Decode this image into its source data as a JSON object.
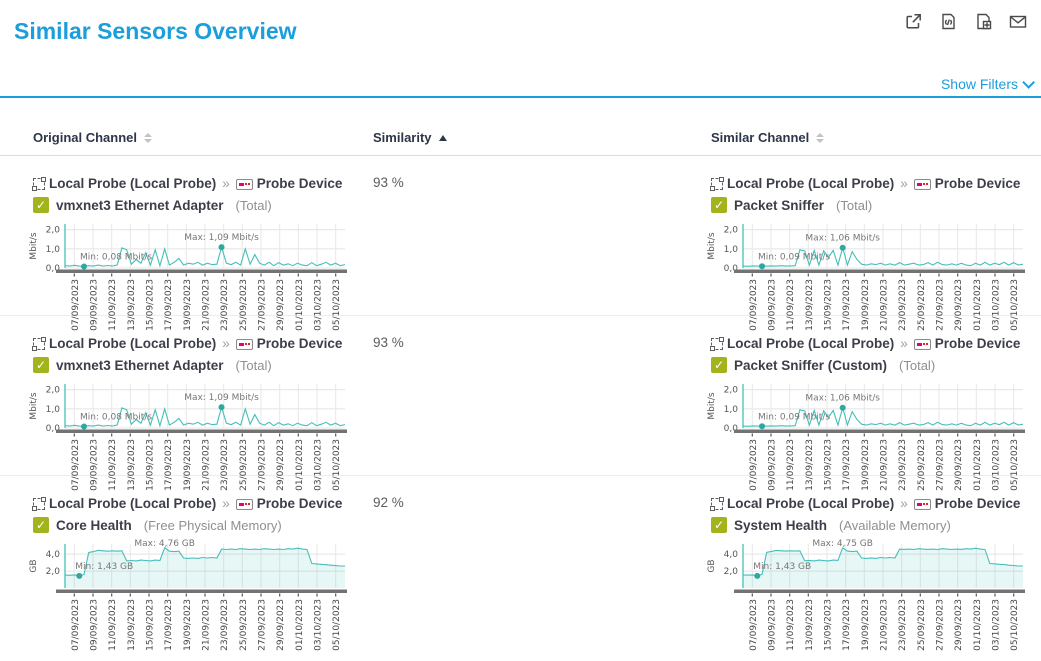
{
  "colors": {
    "accent": "#1b9edc",
    "series": "#45bfb9",
    "check": "#a3b31c"
  },
  "header": {
    "title": "Similar Sensors Overview",
    "show_filters_label": "Show Filters",
    "toolbar_icons": [
      "open-in-new-window",
      "view-page-source",
      "add-report",
      "send-by-email"
    ]
  },
  "table": {
    "breadcrumb_separator": "»",
    "columns": {
      "original": {
        "label": "Original Channel",
        "sort": "none"
      },
      "similarity": {
        "label": "Similarity",
        "sort": "asc"
      },
      "similar": {
        "label": "Similar Channel",
        "sort": "none"
      }
    },
    "rows": [
      {
        "similarity": "93 %",
        "original": {
          "probe": "Local Probe (Local Probe)",
          "device": "Probe Device",
          "sensor": "vmxnet3 Ethernet Adapter",
          "channel": "(Total)",
          "chart_key": "vmxnet3_total"
        },
        "similar": {
          "probe": "Local Probe (Local Probe)",
          "device": "Probe Device",
          "sensor": "Packet Sniffer",
          "channel": "(Total)",
          "chart_key": "packet_sniffer_total"
        }
      },
      {
        "similarity": "93 %",
        "original": {
          "probe": "Local Probe (Local Probe)",
          "device": "Probe Device",
          "sensor": "vmxnet3 Ethernet Adapter",
          "channel": "(Total)",
          "chart_key": "vmxnet3_total"
        },
        "similar": {
          "probe": "Local Probe (Local Probe)",
          "device": "Probe Device",
          "sensor": "Packet Sniffer (Custom)",
          "channel": "(Total)",
          "chart_key": "packet_sniffer_total"
        }
      },
      {
        "similarity": "92 %",
        "original": {
          "probe": "Local Probe (Local Probe)",
          "device": "Probe Device",
          "sensor": "Core Health",
          "channel": "(Free Physical Memory)",
          "chart_key": "core_health_mem"
        },
        "similar": {
          "probe": "Local Probe (Local Probe)",
          "device": "Probe Device",
          "sensor": "System Health",
          "channel": "(Available Memory)",
          "chart_key": "system_health_mem"
        }
      }
    ]
  },
  "chart_data": {
    "vmxnet3_total": {
      "type": "line",
      "unit": "Mbit/s",
      "ylim": [
        0,
        2.3
      ],
      "yticks": [
        {
          "v": 0,
          "label": "0,0"
        },
        {
          "v": 1,
          "label": "1,0"
        },
        {
          "v": 2,
          "label": "2,0"
        }
      ],
      "x_labels": [
        "07/09/2023",
        "09/09/2023",
        "11/09/2023",
        "13/09/2023",
        "15/09/2023",
        "17/09/2023",
        "19/09/2023",
        "21/09/2023",
        "23/09/2023",
        "25/09/2023",
        "27/09/2023",
        "29/09/2023",
        "01/10/2023",
        "03/10/2023",
        "05/10/2023"
      ],
      "max": {
        "label": "Max: 1,09 Mbit/s",
        "frac": 0.559,
        "value": 1.09,
        "dot": true
      },
      "min": {
        "label": "Min: 0,08 Mbit/s",
        "frac": 0.068,
        "value": 0.08
      },
      "values": [
        0.12,
        0.1,
        0.14,
        0.1,
        0.08,
        0.12,
        0.1,
        0.15,
        0.1,
        0.13,
        0.1,
        0.16,
        1.05,
        0.95,
        0.2,
        0.45,
        0.25,
        0.8,
        0.15,
        0.95,
        0.12,
        1.0,
        0.15,
        0.3,
        0.5,
        0.15,
        0.25,
        0.2,
        0.3,
        0.15,
        0.25,
        0.18,
        0.2,
        1.09,
        0.25,
        0.18,
        0.3,
        0.15,
        1.0,
        0.2,
        0.7,
        0.25,
        0.15,
        0.3,
        0.12,
        0.28,
        0.15,
        0.22,
        0.12,
        0.25,
        0.15,
        0.12,
        0.28,
        0.12,
        0.2,
        0.3,
        0.15,
        0.25,
        0.12,
        0.18
      ]
    },
    "packet_sniffer_total": {
      "type": "line",
      "unit": "Mbit/s",
      "ylim": [
        0,
        2.3
      ],
      "yticks": [
        {
          "v": 0,
          "label": "0,0"
        },
        {
          "v": 1,
          "label": "1,0"
        },
        {
          "v": 2,
          "label": "2,0"
        }
      ],
      "x_labels": [
        "07/09/2023",
        "09/09/2023",
        "11/09/2023",
        "13/09/2023",
        "15/09/2023",
        "17/09/2023",
        "19/09/2023",
        "21/09/2023",
        "23/09/2023",
        "25/09/2023",
        "27/09/2023",
        "29/09/2023",
        "01/10/2023",
        "03/10/2023",
        "05/10/2023"
      ],
      "max": {
        "label": "Max: 1,06 Mbit/s",
        "frac": 0.356,
        "value": 1.06,
        "dot": true
      },
      "min": {
        "label": "Min: 0,09 Mbit/s",
        "frac": 0.068,
        "value": 0.09
      },
      "values": [
        0.1,
        0.09,
        0.11,
        0.1,
        0.09,
        0.1,
        0.11,
        0.1,
        0.12,
        0.1,
        0.11,
        0.12,
        0.95,
        0.9,
        0.15,
        0.92,
        0.15,
        0.9,
        0.55,
        0.92,
        0.15,
        1.06,
        0.15,
        0.85,
        0.45,
        0.2,
        0.15,
        0.22,
        0.18,
        0.25,
        0.15,
        0.22,
        0.15,
        0.28,
        0.15,
        0.2,
        0.25,
        0.15,
        0.18,
        0.28,
        0.15,
        0.3,
        0.18,
        0.15,
        0.22,
        0.15,
        0.25,
        0.15,
        0.12,
        0.25,
        0.15,
        0.3,
        0.15,
        0.25,
        0.18,
        0.3,
        0.15,
        0.28,
        0.15,
        0.2
      ]
    },
    "core_health_mem": {
      "type": "area",
      "unit": "GB",
      "ylim": [
        0,
        5.2
      ],
      "yticks": [
        {
          "v": 2,
          "label": "2,0"
        },
        {
          "v": 4,
          "label": "4,0"
        }
      ],
      "x_labels": [
        "07/09/2023",
        "09/09/2023",
        "11/09/2023",
        "13/09/2023",
        "15/09/2023",
        "17/09/2023",
        "19/09/2023",
        "21/09/2023",
        "23/09/2023",
        "25/09/2023",
        "27/09/2023",
        "29/09/2023",
        "01/10/2023",
        "03/10/2023",
        "05/10/2023"
      ],
      "max": {
        "label": "Max: 4,76 GB",
        "frac": 0.356,
        "value": 4.76,
        "dot": false
      },
      "min": {
        "label": "Min: 1,43 GB",
        "frac": 0.051,
        "value": 1.43
      },
      "values": [
        1.55,
        1.5,
        1.55,
        1.43,
        1.6,
        4.2,
        4.3,
        4.45,
        4.4,
        4.35,
        4.4,
        4.35,
        4.4,
        3.2,
        3.25,
        3.2,
        3.3,
        3.25,
        3.2,
        3.3,
        3.25,
        4.76,
        4.35,
        4.3,
        4.35,
        3.55,
        3.5,
        3.55,
        3.5,
        3.6,
        3.55,
        3.6,
        3.55,
        4.6,
        4.55,
        4.6,
        4.55,
        4.65,
        4.6,
        4.55,
        4.6,
        4.55,
        4.65,
        4.6,
        4.55,
        4.6,
        4.55,
        4.65,
        4.6,
        4.7,
        4.6,
        4.55,
        2.9,
        2.85,
        2.8,
        2.75,
        2.7,
        2.65,
        2.6,
        2.6
      ]
    },
    "system_health_mem": {
      "type": "area",
      "unit": "GB",
      "ylim": [
        0,
        5.2
      ],
      "yticks": [
        {
          "v": 2,
          "label": "2,0"
        },
        {
          "v": 4,
          "label": "4,0"
        }
      ],
      "x_labels": [
        "07/09/2023",
        "09/09/2023",
        "11/09/2023",
        "13/09/2023",
        "15/09/2023",
        "17/09/2023",
        "19/09/2023",
        "21/09/2023",
        "23/09/2023",
        "25/09/2023",
        "27/09/2023",
        "29/09/2023",
        "01/10/2023",
        "03/10/2023",
        "05/10/2023"
      ],
      "max": {
        "label": "Max: 4,75 GB",
        "frac": 0.356,
        "value": 4.75,
        "dot": false
      },
      "min": {
        "label": "Min: 1,43 GB",
        "frac": 0.051,
        "value": 1.43
      },
      "values": [
        1.55,
        1.52,
        1.55,
        1.43,
        1.62,
        4.22,
        4.32,
        4.44,
        4.4,
        4.36,
        4.4,
        4.36,
        4.4,
        3.22,
        3.26,
        3.2,
        3.3,
        3.24,
        3.2,
        3.3,
        3.26,
        4.75,
        4.36,
        4.3,
        4.36,
        3.55,
        3.5,
        3.56,
        3.5,
        3.6,
        3.55,
        3.6,
        3.55,
        4.6,
        4.56,
        4.6,
        4.55,
        4.64,
        4.6,
        4.56,
        4.6,
        4.55,
        4.64,
        4.6,
        4.55,
        4.6,
        4.56,
        4.64,
        4.6,
        4.7,
        4.6,
        4.55,
        2.9,
        2.86,
        2.8,
        2.76,
        2.7,
        2.66,
        2.6,
        2.6
      ]
    }
  }
}
